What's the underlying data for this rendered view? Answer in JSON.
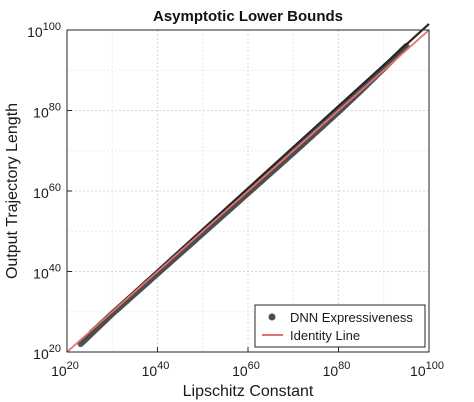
{
  "chart_data": {
    "type": "line",
    "title": "Asymptotic Lower Bounds",
    "xlabel": "Lipschitz Constant",
    "ylabel": "Output Trajectory Length",
    "xscale": "log",
    "yscale": "log",
    "xlim_exponent": [
      20,
      100
    ],
    "ylim_exponent": [
      20,
      100
    ],
    "tick_base": "10",
    "x_tick_exponents": [
      20,
      40,
      60,
      80,
      100
    ],
    "y_tick_exponents": [
      20,
      40,
      60,
      80,
      100
    ],
    "grid": true,
    "legend_position": "bottom-right",
    "series": [
      {
        "name": "DNN Expressiveness",
        "style": "points",
        "color": "#4d4d4d",
        "x_exponent": [
          23,
          30,
          40,
          50,
          60,
          70,
          80,
          85,
          90,
          95
        ],
        "y_exponent": [
          22,
          29.5,
          39.5,
          49.5,
          59.5,
          69.5,
          79.7,
          85,
          90.5,
          96
        ]
      },
      {
        "name": "",
        "style": "line",
        "color": "#262626",
        "x_exponent": [
          25,
          100
        ],
        "y_exponent": [
          25,
          101.5
        ]
      },
      {
        "name": "Identity Line",
        "style": "line",
        "color": "#e87070",
        "x_exponent": [
          20,
          100
        ],
        "y_exponent": [
          20,
          100
        ]
      }
    ]
  }
}
